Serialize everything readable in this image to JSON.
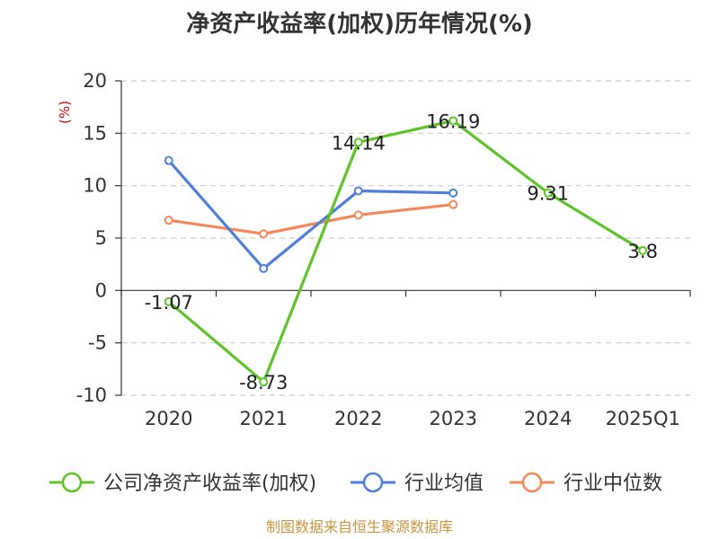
{
  "chart_data": {
    "type": "line",
    "title": "净资产收益率(加权)历年情况(%)",
    "ylabel": "(%)",
    "xlabel": "",
    "categories": [
      "2020",
      "2021",
      "2022",
      "2023",
      "2024",
      "2025Q1"
    ],
    "ylim": [
      -10,
      20
    ],
    "yticks": [
      -10,
      -5,
      0,
      5,
      10,
      15,
      20
    ],
    "grid": true,
    "legend_position": "bottom",
    "series": [
      {
        "name": "公司净资产收益率(加权)",
        "color": "#5ec42a",
        "values": [
          -1.07,
          -8.73,
          14.14,
          16.19,
          9.31,
          3.8
        ],
        "labels": [
          "-1.07",
          "-8.73",
          "14.14",
          "16.19",
          "9.31",
          "3.8"
        ]
      },
      {
        "name": "行业均值",
        "color": "#4f7fdc",
        "values": [
          12.4,
          2.1,
          9.5,
          9.3,
          null,
          null
        ]
      },
      {
        "name": "行业中位数",
        "color": "#f5885a",
        "values": [
          6.7,
          5.4,
          7.2,
          8.2,
          null,
          null
        ]
      }
    ],
    "source": "制图数据来自恒生聚源数据库"
  }
}
